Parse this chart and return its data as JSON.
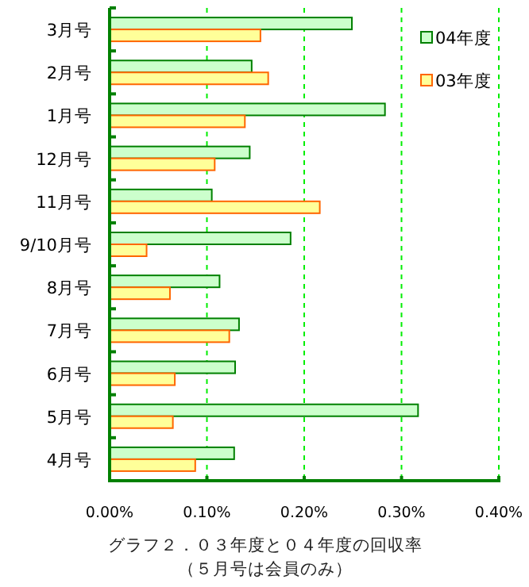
{
  "chart_data": {
    "type": "bar",
    "orientation": "horizontal",
    "title": "グラフ２．０３年度と０４年度の回収率",
    "subtitle": "（５月号は会員のみ）",
    "categories": [
      "3月号",
      "2月号",
      "1月号",
      "12月号",
      "11月号",
      "9/10月号",
      "8月号",
      "7月号",
      "6月号",
      "5月号",
      "4月号"
    ],
    "series": [
      {
        "name": "04年度",
        "color": "#ccffcc",
        "values": [
          0.249,
          0.146,
          0.283,
          0.144,
          0.105,
          0.186,
          0.113,
          0.133,
          0.129,
          0.317,
          0.128
        ]
      },
      {
        "name": "03年度",
        "color": "#ffff99",
        "values": [
          0.155,
          0.163,
          0.139,
          0.108,
          0.216,
          0.038,
          0.062,
          0.123,
          0.067,
          0.065,
          0.088
        ]
      }
    ],
    "xlim": [
      0,
      0.4
    ],
    "xticks": [
      {
        "value": 0,
        "label": "0.00%"
      },
      {
        "value": 0.1,
        "label": "0.10%"
      },
      {
        "value": 0.2,
        "label": "0.20%"
      },
      {
        "value": 0.3,
        "label": "0.30%"
      },
      {
        "value": 0.4,
        "label": "0.40%"
      }
    ],
    "grid": "x",
    "legend": "top right"
  }
}
